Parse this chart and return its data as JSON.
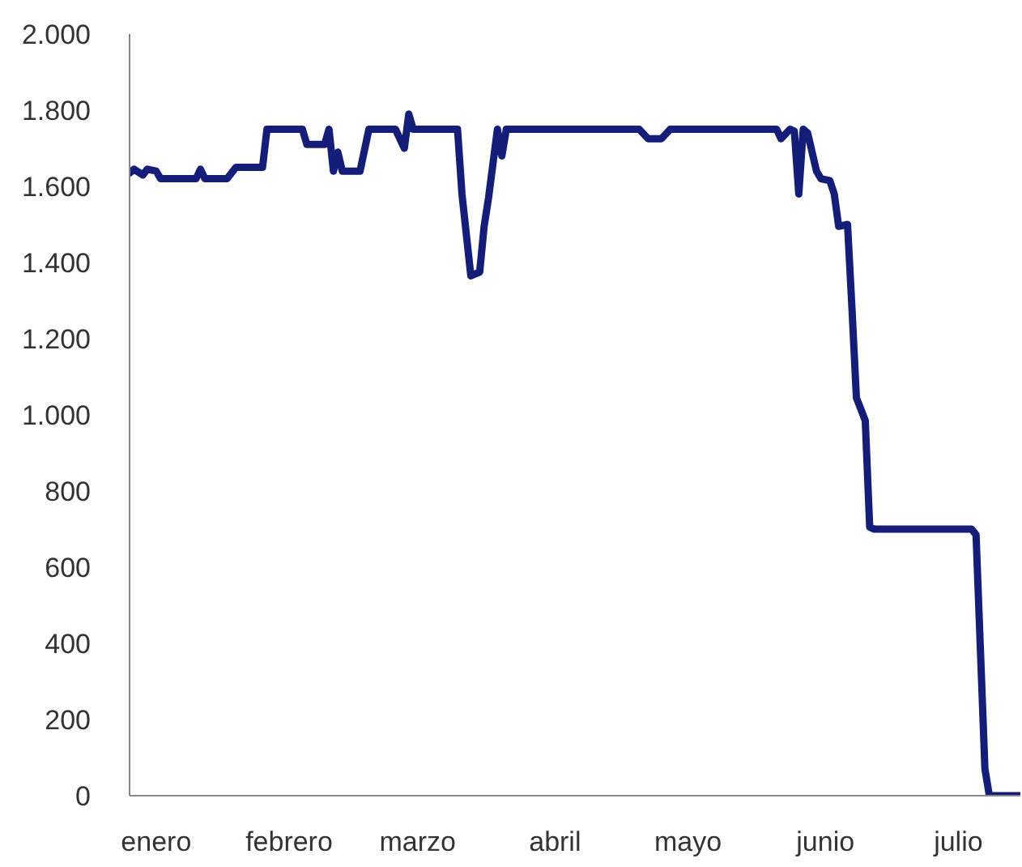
{
  "chart_data": {
    "type": "line",
    "x": [
      "--01-10",
      "--01-11",
      "--01-13",
      "--01-14",
      "--01-16",
      "--01-17",
      "--01-21",
      "--01-25",
      "--01-26",
      "--01-27",
      "--02-01",
      "--02-03",
      "--02-08",
      "--02-09",
      "--02-10",
      "--02-12",
      "--02-15",
      "--02-18",
      "--02-19",
      "--02-23",
      "--02-24",
      "--02-25",
      "--02-26",
      "--02-27",
      "--03-03",
      "--03-05",
      "--03-09",
      "--03-11",
      "--03-13",
      "--03-14",
      "--03-15",
      "--03-20",
      "--03-25",
      "--03-26",
      "--03-28",
      "--03-30",
      "--03-31",
      "--04-01",
      "--04-03",
      "--04-04",
      "--04-05",
      "--04-08",
      "--04-15",
      "--04-22",
      "--04-30",
      "--05-05",
      "--05-07",
      "--05-10",
      "--05-12",
      "--05-21",
      "--06-01",
      "--06-05",
      "--06-06",
      "--06-08",
      "--06-09",
      "--06-10",
      "--06-11",
      "--06-12",
      "--06-14",
      "--06-15",
      "--06-17",
      "--06-18",
      "--06-19",
      "--06-21",
      "--06-22",
      "--06-23",
      "--06-25",
      "--06-26",
      "--06-27",
      "--07-04",
      "--07-11",
      "--07-15",
      "--07-19",
      "--07-20",
      "--07-22",
      "--07-23",
      "--07-30"
    ],
    "series": [
      {
        "color": "#141e78",
        "values": [
          1635,
          1645,
          1630,
          1645,
          1640,
          1620,
          1620,
          1620,
          1645,
          1620,
          1620,
          1650,
          1650,
          1650,
          1750,
          1750,
          1750,
          1750,
          1710,
          1710,
          1750,
          1640,
          1690,
          1640,
          1640,
          1750,
          1750,
          1750,
          1700,
          1790,
          1750,
          1750,
          1750,
          1580,
          1365,
          1375,
          1495,
          1570,
          1750,
          1680,
          1750,
          1750,
          1750,
          1750,
          1750,
          1750,
          1725,
          1725,
          1750,
          1750,
          1750,
          1750,
          1725,
          1750,
          1745,
          1580,
          1750,
          1740,
          1640,
          1620,
          1615,
          1580,
          1495,
          1500,
          1280,
          1045,
          985,
          705,
          700,
          700,
          700,
          700,
          700,
          685,
          70,
          0,
          0
        ]
      }
    ],
    "xlim": [
      "--01-10",
      "--07-30"
    ],
    "xticks": [
      {
        "value": "--01-16",
        "label": "enero"
      },
      {
        "value": "--02-15",
        "label": "febrero"
      },
      {
        "value": "--03-16",
        "label": "marzo"
      },
      {
        "value": "--04-16",
        "label": "abril"
      },
      {
        "value": "--05-16",
        "label": "mayo"
      },
      {
        "value": "--06-16",
        "label": "junio"
      },
      {
        "value": "--07-16",
        "label": "julio"
      }
    ],
    "ylim": [
      0,
      2000
    ],
    "yticks": [
      0,
      200,
      400,
      600,
      800,
      {
        "value": 1000,
        "label": "1.000"
      },
      {
        "value": 1200,
        "label": "1.200"
      },
      {
        "value": 1400,
        "label": "1.400"
      },
      {
        "value": 1600,
        "label": "1.600"
      },
      {
        "value": 1800,
        "label": "1.800"
      },
      {
        "value": 2000,
        "label": "2.000"
      }
    ],
    "grid": false,
    "legend": false,
    "marker": "none",
    "line_style": "solid"
  }
}
